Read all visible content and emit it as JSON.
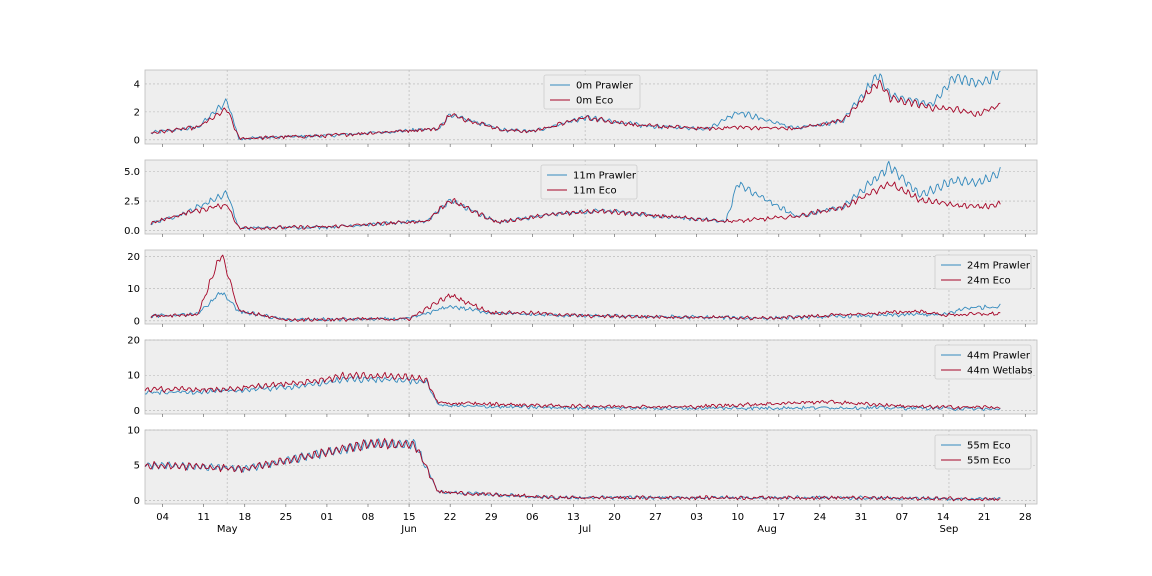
{
  "chart_data": {
    "type": "line",
    "date_range": [
      "2000-05-01",
      "2000-09-30"
    ],
    "grid": true,
    "x_axis": {
      "day_ticks": [
        "04",
        "11",
        "18",
        "25",
        "01",
        "08",
        "15",
        "22",
        "29",
        "06",
        "13",
        "20",
        "27",
        "03",
        "10",
        "17",
        "24",
        "31",
        "07",
        "14",
        "21",
        "28"
      ],
      "month_labels": [
        "May",
        "Jun",
        "Jul",
        "Aug",
        "Sep"
      ]
    },
    "colors": {
      "prawler": "#348ABD",
      "eco": "#A60628"
    },
    "panels": [
      {
        "yticks": [
          "0",
          "2",
          "4"
        ],
        "ylim": [
          -0.3,
          5.0
        ],
        "legend": "top-center",
        "series": [
          {
            "name": "0m Prawler",
            "color": "#348ABD",
            "dates": [
              "2000-05-02",
              "2000-05-10",
              "2000-05-15",
              "2000-05-17",
              "2000-06-01",
              "2000-06-20",
              "2000-06-22",
              "2000-07-01",
              "2000-07-06",
              "2000-07-15",
              "2000-07-25",
              "2000-08-05",
              "2000-08-10",
              "2000-08-20",
              "2000-08-28",
              "2000-09-03",
              "2000-09-05",
              "2000-09-12",
              "2000-09-16",
              "2000-09-20",
              "2000-09-24"
            ],
            "values": [
              0.5,
              0.9,
              2.8,
              0.1,
              0.3,
              0.8,
              1.8,
              0.7,
              0.6,
              1.6,
              1.0,
              0.8,
              2.0,
              0.8,
              1.4,
              4.7,
              3.2,
              2.5,
              4.5,
              4.0,
              4.8
            ]
          },
          {
            "name": "0m Eco",
            "color": "#A60628",
            "dates": [
              "2000-05-02",
              "2000-05-10",
              "2000-05-15",
              "2000-05-17",
              "2000-06-01",
              "2000-06-20",
              "2000-06-22",
              "2000-07-01",
              "2000-07-06",
              "2000-07-15",
              "2000-07-25",
              "2000-08-05",
              "2000-08-10",
              "2000-08-20",
              "2000-08-28",
              "2000-09-03",
              "2000-09-05",
              "2000-09-12",
              "2000-09-16",
              "2000-09-20",
              "2000-09-24"
            ],
            "values": [
              0.5,
              0.9,
              2.2,
              0.1,
              0.3,
              0.8,
              1.8,
              0.7,
              0.6,
              1.6,
              1.0,
              0.8,
              0.9,
              0.8,
              1.4,
              4.2,
              3.0,
              2.3,
              2.2,
              1.8,
              2.6
            ]
          }
        ]
      },
      {
        "yticks": [
          "0.0",
          "2.5",
          "5.0"
        ],
        "ylim": [
          -0.3,
          6.0
        ],
        "legend": "top-center",
        "series": [
          {
            "name": "11m Prawler",
            "color": "#348ABD",
            "dates": [
              "2000-05-02",
              "2000-05-08",
              "2000-05-15",
              "2000-05-17",
              "2000-06-01",
              "2000-06-18",
              "2000-06-22",
              "2000-06-30",
              "2000-07-10",
              "2000-07-18",
              "2000-07-28",
              "2000-08-08",
              "2000-08-10",
              "2000-08-20",
              "2000-08-28",
              "2000-09-05",
              "2000-09-10",
              "2000-09-16",
              "2000-09-20",
              "2000-09-24"
            ],
            "values": [
              0.6,
              1.5,
              3.2,
              0.2,
              0.3,
              0.8,
              2.6,
              0.7,
              1.4,
              1.7,
              1.2,
              0.8,
              4.0,
              1.2,
              2.0,
              5.5,
              3.0,
              4.3,
              4.0,
              5.0
            ]
          },
          {
            "name": "11m Eco",
            "color": "#A60628",
            "dates": [
              "2000-05-02",
              "2000-05-08",
              "2000-05-15",
              "2000-05-17",
              "2000-06-01",
              "2000-06-18",
              "2000-06-22",
              "2000-06-30",
              "2000-07-10",
              "2000-07-18",
              "2000-07-28",
              "2000-08-08",
              "2000-08-10",
              "2000-08-20",
              "2000-08-28",
              "2000-09-05",
              "2000-09-10",
              "2000-09-16",
              "2000-09-20",
              "2000-09-24"
            ],
            "values": [
              0.6,
              1.5,
              2.2,
              0.2,
              0.3,
              0.8,
              2.6,
              0.7,
              1.4,
              1.7,
              1.2,
              0.8,
              0.8,
              1.2,
              2.0,
              4.0,
              2.6,
              2.2,
              2.0,
              2.3
            ]
          }
        ]
      },
      {
        "yticks": [
          "0",
          "10",
          "20"
        ],
        "ylim": [
          -1.0,
          22.0
        ],
        "legend": "top-right",
        "series": [
          {
            "name": "24m Prawler",
            "color": "#348ABD",
            "dates": [
              "2000-05-02",
              "2000-05-10",
              "2000-05-14",
              "2000-05-17",
              "2000-05-25",
              "2000-06-15",
              "2000-06-22",
              "2000-06-29",
              "2000-07-05",
              "2000-07-15",
              "2000-07-30",
              "2000-08-15",
              "2000-08-30",
              "2000-09-10",
              "2000-09-14",
              "2000-09-18",
              "2000-09-24"
            ],
            "values": [
              1.5,
              2.0,
              9.0,
              3.0,
              0.3,
              0.6,
              4.5,
              2.5,
              2.0,
              1.5,
              1.2,
              0.8,
              1.5,
              2.0,
              1.8,
              4.0,
              4.5
            ]
          },
          {
            "name": "24m Eco",
            "color": "#A60628",
            "dates": [
              "2000-05-02",
              "2000-05-10",
              "2000-05-14",
              "2000-05-17",
              "2000-05-25",
              "2000-06-15",
              "2000-06-22",
              "2000-06-29",
              "2000-07-05",
              "2000-07-15",
              "2000-07-30",
              "2000-08-15",
              "2000-08-30",
              "2000-09-10",
              "2000-09-14",
              "2000-09-18",
              "2000-09-24"
            ],
            "values": [
              1.5,
              2.0,
              21.0,
              3.0,
              0.3,
              0.6,
              8.0,
              2.5,
              2.5,
              1.5,
              1.2,
              0.8,
              2.0,
              3.0,
              1.8,
              2.0,
              2.2
            ]
          }
        ]
      },
      {
        "yticks": [
          "0",
          "10",
          "20"
        ],
        "ylim": [
          -1.0,
          20.0
        ],
        "legend": "top-right",
        "series": [
          {
            "name": "44m Prawler",
            "color": "#348ABD",
            "dates": [
              "2000-05-01",
              "2000-05-15",
              "2000-05-28",
              "2000-06-05",
              "2000-06-15",
              "2000-06-18",
              "2000-06-20",
              "2000-06-25",
              "2000-07-10",
              "2000-08-01",
              "2000-08-25",
              "2000-09-10",
              "2000-09-24"
            ],
            "values": [
              5.0,
              5.5,
              7.0,
              9.0,
              8.5,
              8.0,
              1.5,
              1.2,
              0.8,
              0.6,
              0.8,
              0.7,
              0.3
            ]
          },
          {
            "name": "44m Wetlabs",
            "color": "#A60628",
            "dates": [
              "2000-05-01",
              "2000-05-15",
              "2000-05-28",
              "2000-06-05",
              "2000-06-15",
              "2000-06-18",
              "2000-06-20",
              "2000-06-25",
              "2000-07-10",
              "2000-08-01",
              "2000-08-25",
              "2000-09-10",
              "2000-09-24"
            ],
            "values": [
              6.0,
              6.0,
              8.0,
              10.0,
              9.5,
              8.5,
              2.0,
              2.0,
              1.3,
              1.0,
              2.5,
              1.0,
              0.9
            ]
          }
        ]
      },
      {
        "yticks": [
          "0",
          "5",
          "10"
        ],
        "ylim": [
          -0.5,
          10.0
        ],
        "legend": "top-right",
        "series": [
          {
            "name": "55m Eco",
            "color": "#348ABD",
            "dates": [
              "2000-05-01",
              "2000-05-10",
              "2000-05-18",
              "2000-05-30",
              "2000-06-08",
              "2000-06-16",
              "2000-06-20",
              "2000-06-25",
              "2000-07-10",
              "2000-08-01",
              "2000-08-25",
              "2000-09-24"
            ],
            "values": [
              5.0,
              4.8,
              4.5,
              6.5,
              8.0,
              8.0,
              1.2,
              1.0,
              0.4,
              0.4,
              0.4,
              0.2
            ]
          },
          {
            "name": "55m Eco",
            "color": "#A60628",
            "dates": [
              "2000-05-01",
              "2000-05-10",
              "2000-05-18",
              "2000-05-30",
              "2000-06-08",
              "2000-06-16",
              "2000-06-20",
              "2000-06-25",
              "2000-07-10",
              "2000-08-01",
              "2000-08-25",
              "2000-09-24"
            ],
            "values": [
              5.0,
              4.8,
              4.5,
              6.5,
              8.0,
              8.0,
              1.2,
              1.0,
              0.4,
              0.4,
              0.4,
              0.2
            ]
          }
        ]
      }
    ]
  }
}
